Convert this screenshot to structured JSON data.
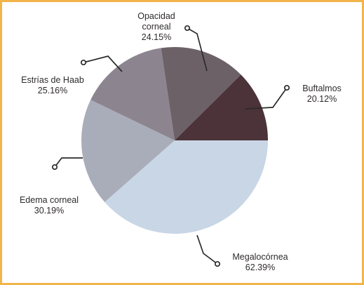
{
  "chart_data": {
    "type": "pie",
    "title": "",
    "slices": [
      {
        "label": "Megalocórnea",
        "value_label": "62.39%",
        "value": 62.39,
        "color": "#c8d6e5"
      },
      {
        "label": "Edema corneal",
        "value_label": "30.19%",
        "value": 30.19,
        "color": "#a9adb9"
      },
      {
        "label": "Estrías de Haab",
        "value_label": "25.16%",
        "value": 25.16,
        "color": "#8c8590"
      },
      {
        "label": "Opacidad corneal",
        "label_lines": [
          "Opacidad",
          "corneal"
        ],
        "value_label": "24.15%",
        "value": 24.15,
        "color": "#6d6168"
      },
      {
        "label": "Buftalmos",
        "value_label": "20.12%",
        "value": 20.12,
        "color": "#4b3339"
      }
    ],
    "grid": false,
    "legend": "none",
    "frame_color": "#f2b54a"
  }
}
